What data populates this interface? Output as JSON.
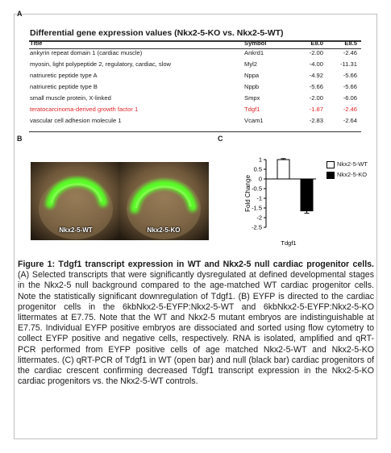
{
  "panel_labels": {
    "a": "A",
    "b": "B",
    "c": "C"
  },
  "table": {
    "title": "Differential gene expression values (Nkx2-5-KO vs. Nkx2-5-WT)",
    "headers": [
      "Title",
      "Symbol",
      "E8.0",
      "E8.5"
    ],
    "rows": [
      {
        "title": "ankyrin repeat domain 1 (cardiac muscle)",
        "symbol": "Ankrd1",
        "e80": "-2.00",
        "e85": "-2.46"
      },
      {
        "title": "myosin, light polypeptide 2, regulatory, cardiac, slow",
        "symbol": "Myl2",
        "e80": "-4.00",
        "e85": "-11.31"
      },
      {
        "title": "natriuretic peptide type A",
        "symbol": "Nppa",
        "e80": "-4.92",
        "e85": "-5.66"
      },
      {
        "title": "natriuretic peptide type B",
        "symbol": "Nppb",
        "e80": "-5.66",
        "e85": "-5.66"
      },
      {
        "title": "small muscle protein, X-linked",
        "symbol": "Smpx",
        "e80": "-2.00",
        "e85": "-6.06"
      },
      {
        "title": "teratocarcinoma-derived growth factor 1",
        "symbol": "Tdgf1",
        "e80": "-1.87",
        "e85": "-2.46"
      },
      {
        "title": "vascular cell adhesion molecule 1",
        "symbol": "Vcam1",
        "e80": "-2.83",
        "e85": "-2.64"
      }
    ],
    "highlight_color": "#e0262a"
  },
  "micrographs": {
    "wt_label": "Nkx2-5-WT",
    "ko_label": "Nkx2-5-KO"
  },
  "chart_data": {
    "type": "bar",
    "categories": [
      "Tdgf1"
    ],
    "series": [
      {
        "name": "Nkx2-5-WT",
        "values": [
          1.0
        ],
        "error": [
          0.05
        ],
        "fill": "#ffffff"
      },
      {
        "name": "Nkx2-5-KO",
        "values": [
          -1.65
        ],
        "error": [
          0.12
        ],
        "fill": "#000000"
      }
    ],
    "ylabel": "Fold Change",
    "xlabel": "Tdgf1",
    "ylim": [
      -2.5,
      1.0
    ],
    "yticks": [
      "1",
      "0.5",
      "0",
      "-0.5",
      "-1",
      "-1.5",
      "-2",
      "-2.5"
    ],
    "yticks_values": [
      1,
      0.5,
      0,
      -0.5,
      -1,
      -1.5,
      -2,
      -2.5
    ],
    "legend_position": "right"
  },
  "caption": {
    "bold": "Figure 1: Tdgf1 transcript expression in WT and Nkx2-5 null cardiac progenitor cells.",
    "body": " (A) Selected transcripts that were significantly dysregulated at defined developmental stages in the Nkx2-5 null background compared to the age-matched WT cardiac progenitor cells. Note the statistically significant downregulation of Tdgf1. (B) EYFP is directed to the cardiac progenitor cells in the 6kbNkx2-5-EYFP:Nkx2-5-WT and 6kbNkx2-5-EYFP:Nkx2-5-KO littermates at E7.75. Note that the WT and Nkx2-5 mutant embryos are indistinguishable at E7.75. Individual EYFP positive embryos are dissociated and sorted using flow cytometry to collect EYFP positive and negative cells, respectively. RNA is isolated, amplified and qRT-PCR performed from EYFP positive cells of age matched Nkx2-5-WT and Nkx2-5-KO littermates. (C) qRT-PCR of Tdgf1 in WT (open bar) and null (black bar) cardiac progenitors of the cardiac crescent confirming decreased Tdgf1 transcript expression in the Nkx2-5-KO cardiac progenitors vs. the Nkx2-5-WT controls."
  }
}
